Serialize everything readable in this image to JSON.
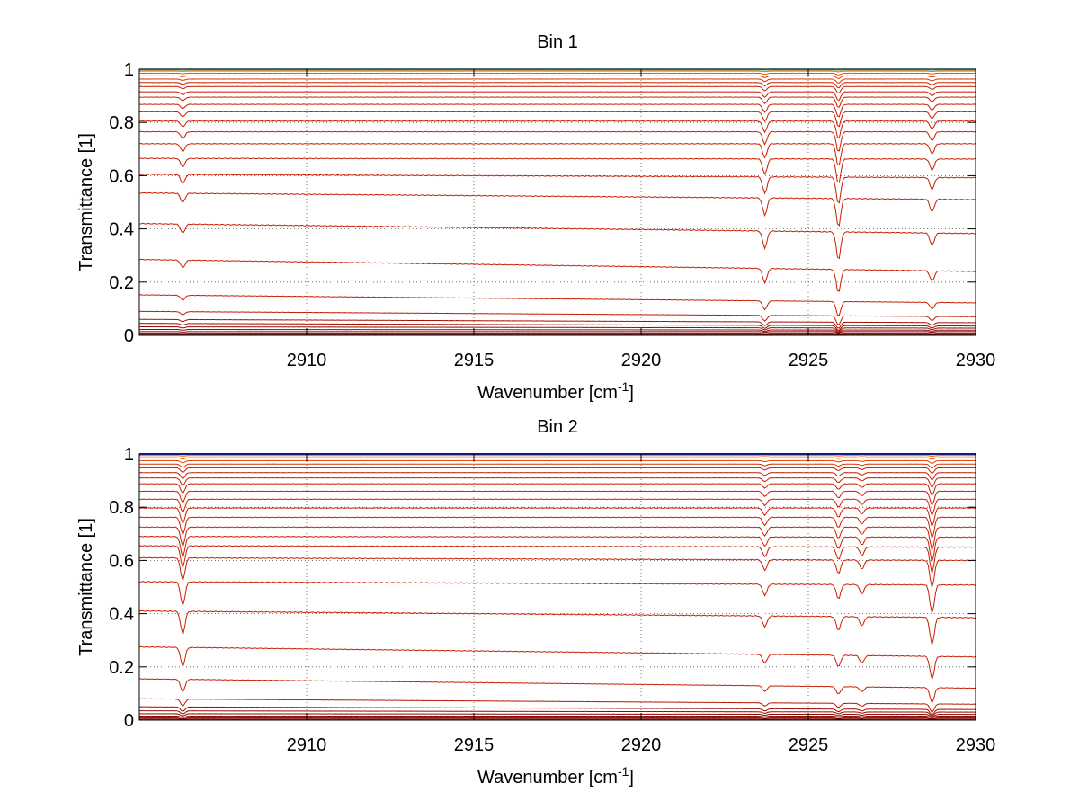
{
  "chart_data": [
    {
      "type": "line",
      "title": "Bin 1",
      "xlabel": "Wavenumber [cm",
      "xlabel_sup": "-1",
      "xlabel_end": "]",
      "ylabel": "Transmittance [1]",
      "xlim": [
        2905,
        2930
      ],
      "ylim": [
        0,
        1
      ],
      "xticks": [
        2910,
        2915,
        2920,
        2925,
        2930
      ],
      "yticks": [
        0,
        0.2,
        0.4,
        0.6,
        0.8,
        1
      ],
      "ytick_labels": [
        "0",
        "0.2",
        "0.4",
        "0.6",
        "0.8",
        "1"
      ],
      "grid": true,
      "series_count": 30,
      "series_baseline_at_2905": [
        0.999,
        0.997,
        0.993,
        0.985,
        0.975,
        0.963,
        0.95,
        0.935,
        0.915,
        0.895,
        0.868,
        0.84,
        0.805,
        0.765,
        0.72,
        0.665,
        0.605,
        0.535,
        0.42,
        0.285,
        0.152,
        0.09,
        0.06,
        0.045,
        0.032,
        0.022,
        0.014,
        0.008,
        0.004,
        0.001
      ],
      "series_slope_per_cm-1": [
        0,
        0,
        0,
        0,
        0,
        0,
        0,
        0,
        0,
        0,
        0,
        0,
        0,
        0,
        0,
        -0.0001,
        -0.0005,
        -0.001,
        -0.0015,
        -0.0018,
        -0.0012,
        -0.0008,
        -0.0005,
        -0.0004,
        -0.0002,
        -0.0001,
        0,
        0,
        0,
        0
      ],
      "absorption_lines": [
        {
          "x": 2906.3,
          "depth": 0.3
        },
        {
          "x": 2923.7,
          "depth": 0.55
        },
        {
          "x": 2925.9,
          "depth": 0.9
        },
        {
          "x": 2928.7,
          "depth": 0.4
        }
      ],
      "colors": {
        "low_transmittance": "#7a0000",
        "mid": "#c81e00",
        "high": "#ff6a00",
        "top": "#2ad4c8"
      }
    },
    {
      "type": "line",
      "title": "Bin 2",
      "xlabel": "Wavenumber [cm",
      "xlabel_sup": "-1",
      "xlabel_end": "]",
      "ylabel": "Transmittance [1]",
      "xlim": [
        2905,
        2930
      ],
      "ylim": [
        0,
        1
      ],
      "xticks": [
        2910,
        2915,
        2920,
        2925,
        2930
      ],
      "yticks": [
        0,
        0.2,
        0.4,
        0.6,
        0.8,
        1
      ],
      "ytick_labels": [
        "0",
        "0.2",
        "0.4",
        "0.6",
        "0.8",
        "1"
      ],
      "grid": true,
      "series_count": 30,
      "series_baseline_at_2905": [
        1.0,
        0.998,
        0.994,
        0.986,
        0.975,
        0.962,
        0.948,
        0.93,
        0.91,
        0.888,
        0.86,
        0.83,
        0.797,
        0.762,
        0.725,
        0.69,
        0.655,
        0.61,
        0.52,
        0.41,
        0.275,
        0.155,
        0.08,
        0.05,
        0.035,
        0.024,
        0.015,
        0.008,
        0.004,
        0.001
      ],
      "series_slope_per_cm-1": [
        0,
        0,
        0,
        0,
        0,
        0,
        0,
        0,
        0,
        0,
        0,
        0,
        0,
        0,
        0,
        -0.0001,
        -0.0002,
        -0.0004,
        -0.0005,
        -0.001,
        -0.0015,
        -0.0014,
        -0.0008,
        -0.0004,
        -0.0002,
        -0.0001,
        0,
        0,
        0,
        0
      ],
      "absorption_lines": [
        {
          "x": 2906.3,
          "depth": 0.75
        },
        {
          "x": 2923.7,
          "depth": 0.35
        },
        {
          "x": 2925.9,
          "depth": 0.45
        },
        {
          "x": 2926.6,
          "depth": 0.3
        },
        {
          "x": 2928.7,
          "depth": 0.9
        }
      ],
      "colors": {
        "low_transmittance": "#7a0000",
        "mid": "#c81e00",
        "high": "#ff6a00",
        "top": "#1a3cff"
      }
    }
  ]
}
